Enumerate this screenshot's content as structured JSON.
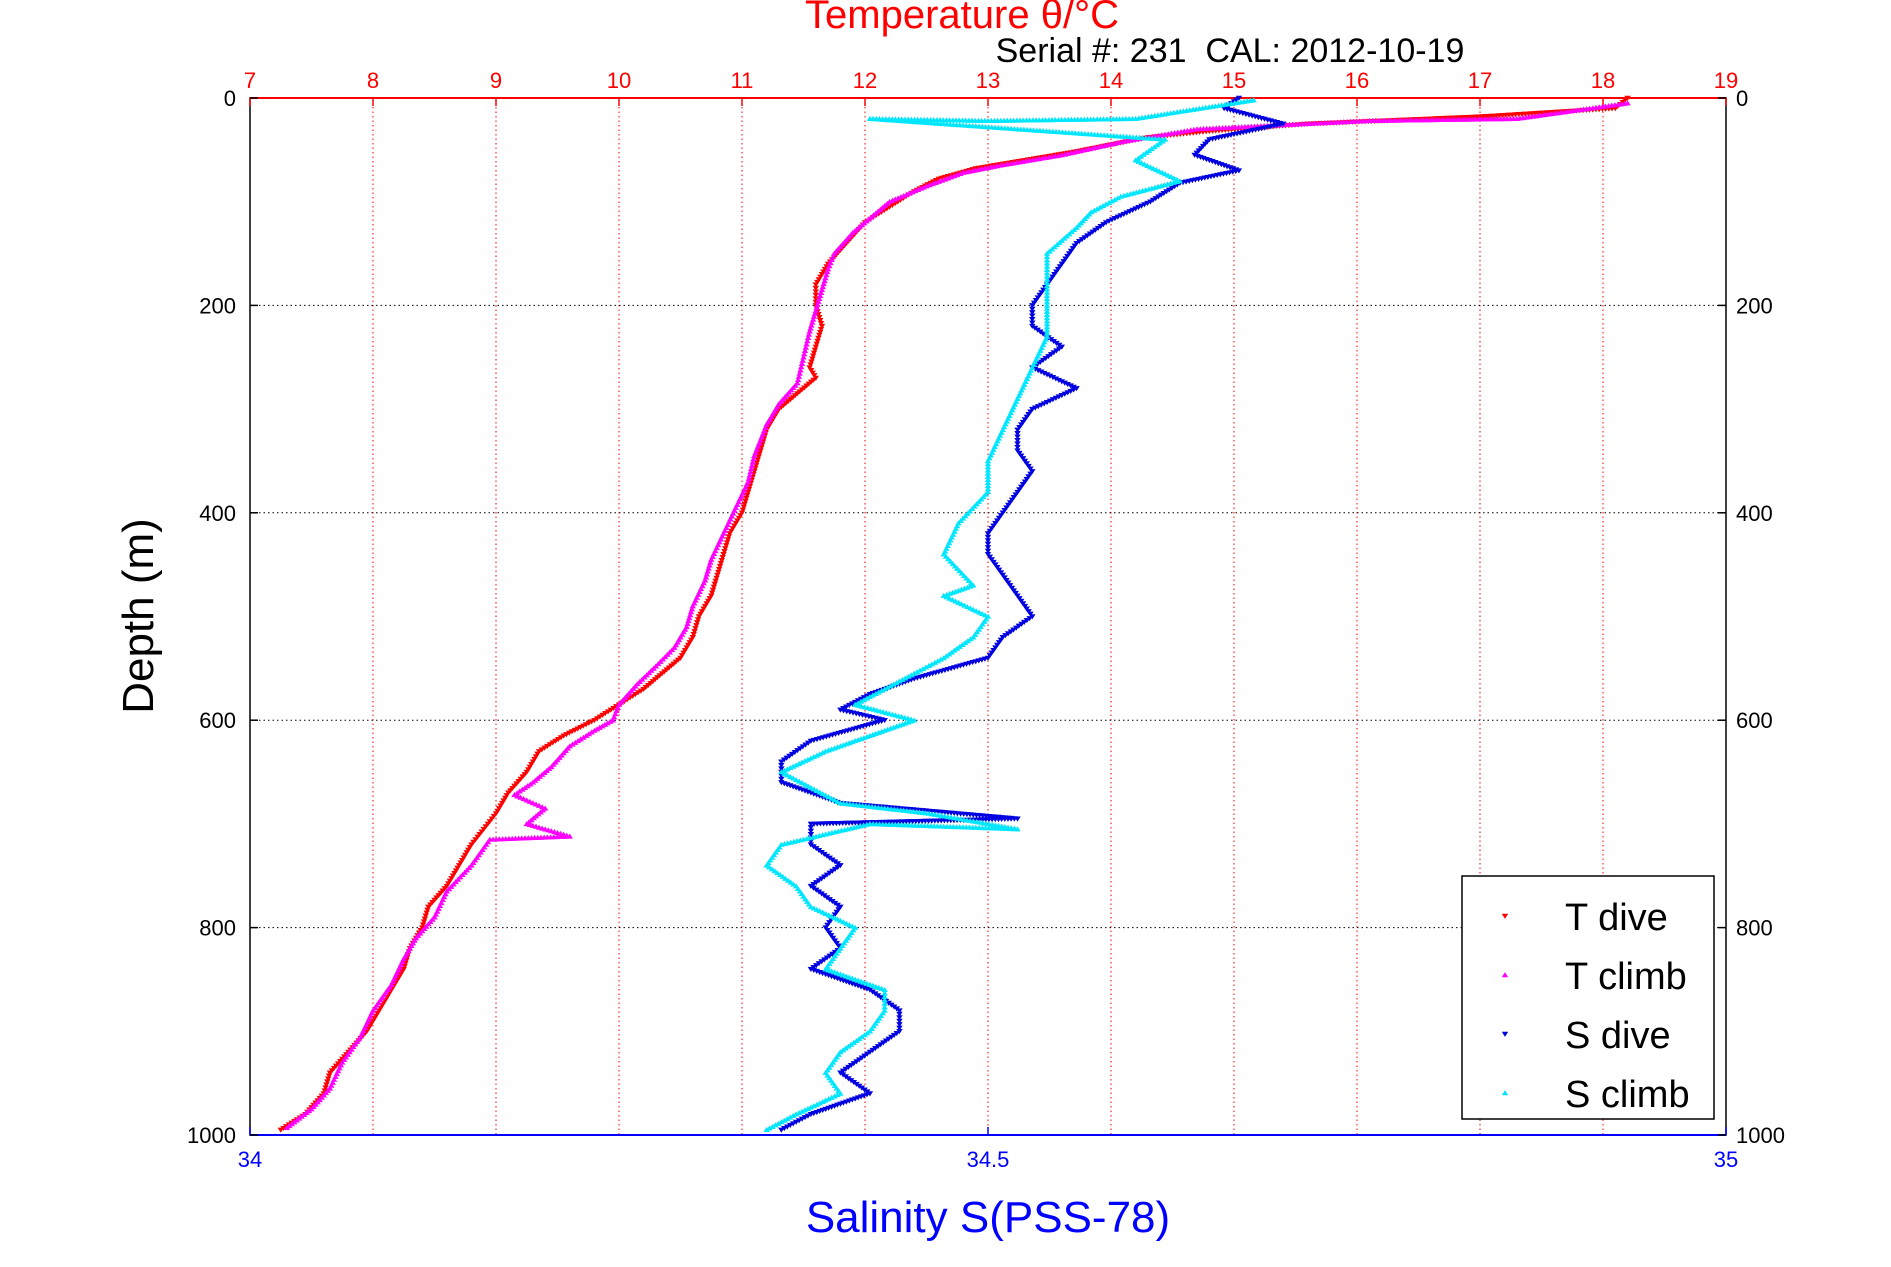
{
  "colors": {
    "temperature_axis": "#ff0000",
    "salinity_axis": "#0000ff",
    "t_dive": "#ff0000",
    "t_climb": "#ff00ff",
    "s_dive": "#0000e0",
    "s_climb": "#00e6ff",
    "grid": "#000000",
    "text": "#000000"
  },
  "chart_data": {
    "type": "scatter",
    "title": "Temperature θ/°C",
    "subtitle": "Serial #: 231  CAL: 2012-10-19",
    "ylabel": "Depth (m)",
    "xlabel_bottom": "Salinity S(PSS-78)",
    "ylim": [
      0,
      1000
    ],
    "y_reversed": true,
    "y_ticks": [
      "0",
      "200",
      "400",
      "600",
      "800",
      "1000"
    ],
    "temperature_axis": {
      "position": "top",
      "lim": [
        7,
        19
      ],
      "ticks": [
        "7",
        "8",
        "9",
        "10",
        "11",
        "12",
        "13",
        "14",
        "15",
        "16",
        "17",
        "18",
        "19"
      ]
    },
    "salinity_axis": {
      "position": "bottom",
      "lim": [
        34,
        35
      ],
      "ticks": [
        "34",
        "34.5",
        "35"
      ]
    },
    "grid": true,
    "legend_position": "bottom-right",
    "series": [
      {
        "name": "T dive",
        "axis": "temperature",
        "marker": "triangle-down",
        "points": [
          [
            18.2,
            0
          ],
          [
            18.1,
            10
          ],
          [
            17.0,
            18
          ],
          [
            15.6,
            25
          ],
          [
            14.8,
            32
          ],
          [
            14.3,
            38
          ],
          [
            14.0,
            45
          ],
          [
            13.7,
            52
          ],
          [
            13.3,
            60
          ],
          [
            12.9,
            68
          ],
          [
            12.6,
            78
          ],
          [
            12.4,
            90
          ],
          [
            12.2,
            105
          ],
          [
            12.0,
            120
          ],
          [
            11.85,
            140
          ],
          [
            11.7,
            160
          ],
          [
            11.6,
            180
          ],
          [
            11.6,
            200
          ],
          [
            11.65,
            220
          ],
          [
            11.6,
            240
          ],
          [
            11.55,
            260
          ],
          [
            11.6,
            270
          ],
          [
            11.45,
            285
          ],
          [
            11.3,
            300
          ],
          [
            11.2,
            320
          ],
          [
            11.15,
            340
          ],
          [
            11.1,
            360
          ],
          [
            11.05,
            380
          ],
          [
            11.0,
            400
          ],
          [
            10.9,
            420
          ],
          [
            10.85,
            440
          ],
          [
            10.8,
            460
          ],
          [
            10.75,
            480
          ],
          [
            10.65,
            500
          ],
          [
            10.6,
            520
          ],
          [
            10.5,
            540
          ],
          [
            10.35,
            555
          ],
          [
            10.2,
            570
          ],
          [
            10.0,
            585
          ],
          [
            9.8,
            600
          ],
          [
            9.55,
            615
          ],
          [
            9.35,
            630
          ],
          [
            9.25,
            650
          ],
          [
            9.1,
            670
          ],
          [
            9.0,
            690
          ],
          [
            8.9,
            705
          ],
          [
            8.8,
            720
          ],
          [
            8.7,
            740
          ],
          [
            8.6,
            760
          ],
          [
            8.45,
            780
          ],
          [
            8.4,
            800
          ],
          [
            8.3,
            820
          ],
          [
            8.25,
            840
          ],
          [
            8.15,
            860
          ],
          [
            8.05,
            880
          ],
          [
            7.95,
            900
          ],
          [
            7.8,
            920
          ],
          [
            7.65,
            940
          ],
          [
            7.6,
            960
          ],
          [
            7.45,
            980
          ],
          [
            7.25,
            995
          ]
        ]
      },
      {
        "name": "T climb",
        "axis": "temperature",
        "marker": "triangle-up",
        "points": [
          [
            18.2,
            5
          ],
          [
            17.3,
            20
          ],
          [
            16.1,
            22
          ],
          [
            14.7,
            30
          ],
          [
            14.1,
            42
          ],
          [
            13.6,
            55
          ],
          [
            13.1,
            65
          ],
          [
            12.8,
            72
          ],
          [
            12.5,
            85
          ],
          [
            12.2,
            100
          ],
          [
            12.05,
            115
          ],
          [
            11.9,
            130
          ],
          [
            11.75,
            150
          ],
          [
            11.7,
            165
          ],
          [
            11.65,
            185
          ],
          [
            11.6,
            205
          ],
          [
            11.55,
            225
          ],
          [
            11.5,
            250
          ],
          [
            11.45,
            275
          ],
          [
            11.3,
            295
          ],
          [
            11.2,
            315
          ],
          [
            11.1,
            345
          ],
          [
            11.05,
            370
          ],
          [
            10.95,
            395
          ],
          [
            10.85,
            420
          ],
          [
            10.75,
            445
          ],
          [
            10.7,
            465
          ],
          [
            10.6,
            490
          ],
          [
            10.55,
            510
          ],
          [
            10.45,
            530
          ],
          [
            10.3,
            548
          ],
          [
            10.15,
            565
          ],
          [
            10.0,
            585
          ],
          [
            9.95,
            600
          ],
          [
            9.8,
            610
          ],
          [
            9.6,
            625
          ],
          [
            9.45,
            645
          ],
          [
            9.3,
            660
          ],
          [
            9.15,
            672
          ],
          [
            9.4,
            685
          ],
          [
            9.25,
            700
          ],
          [
            9.6,
            712
          ],
          [
            8.95,
            715
          ],
          [
            8.8,
            740
          ],
          [
            8.6,
            765
          ],
          [
            8.5,
            790
          ],
          [
            8.35,
            810
          ],
          [
            8.25,
            830
          ],
          [
            8.15,
            855
          ],
          [
            8.0,
            880
          ],
          [
            7.9,
            905
          ],
          [
            7.75,
            930
          ],
          [
            7.65,
            955
          ],
          [
            7.5,
            975
          ],
          [
            7.3,
            993
          ]
        ]
      },
      {
        "name": "S dive",
        "axis": "salinity",
        "marker": "triangle-down",
        "points": [
          [
            34.67,
            0
          ],
          [
            34.66,
            10
          ],
          [
            34.7,
            25
          ],
          [
            34.65,
            40
          ],
          [
            34.64,
            55
          ],
          [
            34.67,
            70
          ],
          [
            34.63,
            82
          ],
          [
            34.61,
            100
          ],
          [
            34.58,
            120
          ],
          [
            34.56,
            140
          ],
          [
            34.55,
            160
          ],
          [
            34.54,
            180
          ],
          [
            34.53,
            200
          ],
          [
            34.53,
            220
          ],
          [
            34.55,
            240
          ],
          [
            34.53,
            260
          ],
          [
            34.56,
            280
          ],
          [
            34.53,
            300
          ],
          [
            34.52,
            320
          ],
          [
            34.52,
            340
          ],
          [
            34.53,
            360
          ],
          [
            34.52,
            380
          ],
          [
            34.51,
            400
          ],
          [
            34.5,
            420
          ],
          [
            34.5,
            440
          ],
          [
            34.51,
            460
          ],
          [
            34.52,
            480
          ],
          [
            34.53,
            500
          ],
          [
            34.51,
            520
          ],
          [
            34.5,
            540
          ],
          [
            34.45,
            560
          ],
          [
            34.42,
            575
          ],
          [
            34.4,
            590
          ],
          [
            34.43,
            600
          ],
          [
            34.38,
            620
          ],
          [
            34.36,
            640
          ],
          [
            34.36,
            660
          ],
          [
            34.4,
            680
          ],
          [
            34.52,
            695
          ],
          [
            34.38,
            700
          ],
          [
            34.38,
            720
          ],
          [
            34.4,
            740
          ],
          [
            34.38,
            760
          ],
          [
            34.4,
            780
          ],
          [
            34.39,
            800
          ],
          [
            34.4,
            820
          ],
          [
            34.38,
            840
          ],
          [
            34.42,
            860
          ],
          [
            34.44,
            880
          ],
          [
            34.44,
            900
          ],
          [
            34.42,
            920
          ],
          [
            34.4,
            940
          ],
          [
            34.42,
            960
          ],
          [
            34.38,
            980
          ],
          [
            34.36,
            995
          ]
        ]
      },
      {
        "name": "S climb",
        "axis": "salinity",
        "marker": "triangle-up",
        "points": [
          [
            34.68,
            2
          ],
          [
            34.6,
            20
          ],
          [
            34.5,
            22
          ],
          [
            34.42,
            20
          ],
          [
            34.62,
            40
          ],
          [
            34.6,
            60
          ],
          [
            34.63,
            80
          ],
          [
            34.59,
            95
          ],
          [
            34.57,
            110
          ],
          [
            34.56,
            125
          ],
          [
            34.54,
            150
          ],
          [
            34.54,
            175
          ],
          [
            34.54,
            200
          ],
          [
            34.54,
            230
          ],
          [
            34.53,
            260
          ],
          [
            34.52,
            290
          ],
          [
            34.51,
            320
          ],
          [
            34.5,
            350
          ],
          [
            34.5,
            380
          ],
          [
            34.48,
            410
          ],
          [
            34.47,
            440
          ],
          [
            34.49,
            470
          ],
          [
            34.47,
            480
          ],
          [
            34.5,
            500
          ],
          [
            34.49,
            520
          ],
          [
            34.47,
            540
          ],
          [
            34.45,
            555
          ],
          [
            34.43,
            570
          ],
          [
            34.41,
            585
          ],
          [
            34.45,
            600
          ],
          [
            34.42,
            615
          ],
          [
            34.39,
            630
          ],
          [
            34.36,
            650
          ],
          [
            34.38,
            665
          ],
          [
            34.4,
            680
          ],
          [
            34.46,
            690
          ],
          [
            34.52,
            705
          ],
          [
            34.42,
            700
          ],
          [
            34.36,
            720
          ],
          [
            34.35,
            740
          ],
          [
            34.37,
            760
          ],
          [
            34.38,
            780
          ],
          [
            34.41,
            800
          ],
          [
            34.4,
            820
          ],
          [
            34.39,
            840
          ],
          [
            34.43,
            860
          ],
          [
            34.43,
            880
          ],
          [
            34.42,
            900
          ],
          [
            34.4,
            920
          ],
          [
            34.39,
            940
          ],
          [
            34.4,
            960
          ],
          [
            34.37,
            980
          ],
          [
            34.35,
            995
          ]
        ]
      }
    ]
  }
}
